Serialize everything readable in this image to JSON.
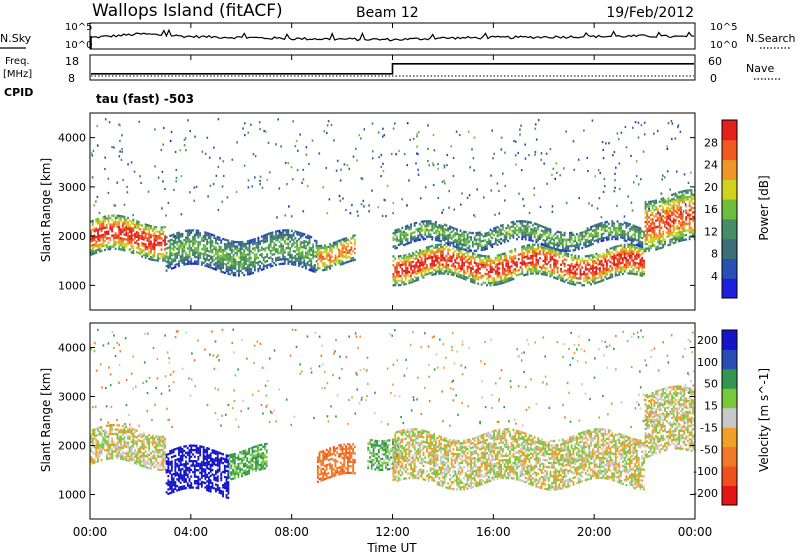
{
  "header": {
    "station": "Wallops Island (fitACF)",
    "beam": "Beam 12",
    "date": "19/Feb/2012"
  },
  "noise_panel": {
    "left_label": "N.Sky",
    "right_label": "N.Search",
    "left_ticks": [
      "10^5",
      "10^0"
    ],
    "right_ticks": [
      "10^5",
      "10^0"
    ]
  },
  "freq_panel": {
    "left_label_1": "Freq.",
    "left_label_2": "[MHz]",
    "right_label": "Nave",
    "left_ticks": [
      18,
      8
    ],
    "right_ticks": [
      60,
      0
    ],
    "cpid_label": "CPID",
    "mode_label": "tau (fast) -503"
  },
  "x_axis": {
    "label": "Time UT",
    "ticks": [
      "00:00",
      "04:00",
      "08:00",
      "12:00",
      "16:00",
      "20:00",
      "00:00"
    ]
  },
  "power_panel": {
    "ylabel": "Slant Range [km]",
    "yticks": [
      1000,
      2000,
      3000,
      4000
    ],
    "colorbar_label": "Power [dB]",
    "colorbar_ticks": [
      "4",
      "8",
      "12",
      "16",
      "20",
      "24",
      "28"
    ]
  },
  "velocity_panel": {
    "ylabel": "Slant Range [km]",
    "yticks": [
      1000,
      2000,
      3000,
      4000
    ],
    "colorbar_label": "Velocity [m s^-1]",
    "colorbar_ticks": [
      "200",
      "100",
      "50",
      "15",
      "-15",
      "-50",
      "-100",
      "-200"
    ]
  },
  "colors": {
    "power_scale": [
      "#1e1edc",
      "#2850b4",
      "#3c6e78",
      "#468c64",
      "#6cbe3c",
      "#d2d21e",
      "#f09628",
      "#f05a1e",
      "#e61e1e"
    ],
    "velocity_scale": [
      "#1414c8",
      "#284bb4",
      "#329650",
      "#78c83c",
      "#c8c8c8",
      "#f0a028",
      "#f07828",
      "#f0501e",
      "#e61414"
    ]
  },
  "chart_data": [
    {
      "type": "line",
      "title": "N.Sky / N.Search",
      "x": [
        "00:00",
        "02:00",
        "04:00",
        "06:00",
        "08:00",
        "10:00",
        "12:00",
        "14:00",
        "16:00",
        "18:00",
        "20:00",
        "22:00",
        "00:00"
      ],
      "series": [
        {
          "name": "N.Sky",
          "values": [
            2.2,
            2.9,
            2.4,
            2.2,
            2.0,
            1.9,
            1.8,
            2.1,
            2.2,
            2.3,
            2.4,
            2.5,
            2.3
          ]
        }
      ],
      "ylim": [
        0,
        5
      ]
    },
    {
      "type": "line",
      "title": "Freq. [MHz] / Nave",
      "x": [
        "00:00",
        "02:00",
        "04:00",
        "06:00",
        "08:00",
        "10:00",
        "12:00",
        "14:00",
        "16:00",
        "18:00",
        "20:00",
        "22:00",
        "00:00"
      ],
      "series": [
        {
          "name": "Freq.",
          "values": [
            10.5,
            10.5,
            10.5,
            10.5,
            10.5,
            10.5,
            14.5,
            14.5,
            14.5,
            14.5,
            14.5,
            14.5,
            14.5
          ]
        }
      ],
      "ylim": [
        8,
        18
      ]
    },
    {
      "type": "heatmap",
      "title": "Power [dB]",
      "xlabel": "Time UT",
      "ylabel": "Slant Range [km]",
      "xlim": [
        0,
        24
      ],
      "ylim": [
        500,
        4500
      ],
      "x_ticks": [
        "00:00",
        "04:00",
        "08:00",
        "12:00",
        "16:00",
        "20:00",
        "00:00"
      ],
      "zlim": [
        0,
        30
      ],
      "features": [
        {
          "from_hour": 0.0,
          "to_hour": 3.0,
          "range_start_km": 1600,
          "range_end_km": 2300,
          "peak_power_db": 28
        },
        {
          "from_hour": 3.0,
          "to_hour": 9.0,
          "range_start_km": 1300,
          "range_end_km": 2000,
          "peak_power_db": 14
        },
        {
          "from_hour": 9.0,
          "to_hour": 10.5,
          "range_start_km": 1400,
          "range_end_km": 1900,
          "peak_power_db": 24
        },
        {
          "from_hour": 12.0,
          "to_hour": 22.0,
          "range_start_km": 1100,
          "range_end_km": 1700,
          "peak_power_db": 28
        },
        {
          "from_hour": 12.0,
          "to_hour": 22.0,
          "range_start_km": 1800,
          "range_end_km": 2200,
          "peak_power_db": 14
        },
        {
          "from_hour": 22.0,
          "to_hour": 24.0,
          "range_start_km": 1800,
          "range_end_km": 2800,
          "peak_power_db": 26
        }
      ]
    },
    {
      "type": "heatmap",
      "title": "Velocity [m s^-1]",
      "xlabel": "Time UT",
      "ylabel": "Slant Range [km]",
      "xlim": [
        0,
        24
      ],
      "ylim": [
        500,
        4500
      ],
      "x_ticks": [
        "00:00",
        "04:00",
        "08:00",
        "12:00",
        "16:00",
        "20:00",
        "00:00"
      ],
      "zlim": [
        -200,
        200
      ],
      "features": [
        {
          "from_hour": 0.0,
          "to_hour": 3.0,
          "range_start_km": 1600,
          "range_end_km": 2300,
          "velocity_ms": 0
        },
        {
          "from_hour": 3.0,
          "to_hour": 5.5,
          "range_start_km": 1000,
          "range_end_km": 1900,
          "velocity_ms": 220
        },
        {
          "from_hour": 5.5,
          "to_hour": 7.0,
          "range_start_km": 1400,
          "range_end_km": 1900,
          "velocity_ms": 40
        },
        {
          "from_hour": 9.0,
          "to_hour": 10.5,
          "range_start_km": 1300,
          "range_end_km": 1900,
          "velocity_ms": -60
        },
        {
          "from_hour": 11.0,
          "to_hour": 12.2,
          "range_start_km": 1600,
          "range_end_km": 2200,
          "velocity_ms": 30
        },
        {
          "from_hour": 12.0,
          "to_hour": 22.0,
          "range_start_km": 1200,
          "range_end_km": 2200,
          "velocity_ms": 0
        },
        {
          "from_hour": 22.0,
          "to_hour": 24.0,
          "range_start_km": 1800,
          "range_end_km": 3100,
          "velocity_ms": 0
        }
      ]
    }
  ]
}
